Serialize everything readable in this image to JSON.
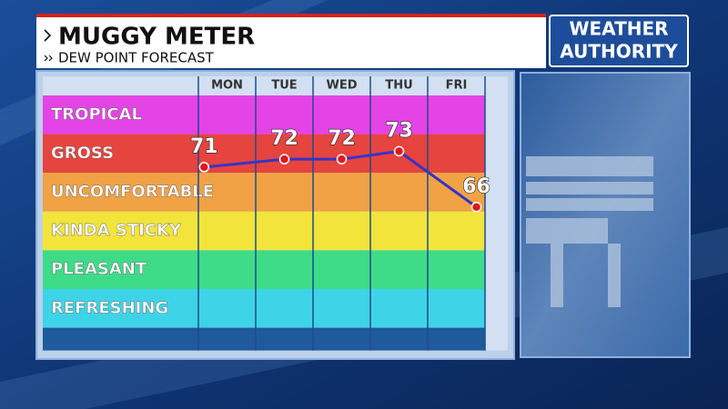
{
  "branding": {
    "logo": [
      "WEATHER",
      "AUTHORITY"
    ]
  },
  "chart_data": {
    "type": "line",
    "title": "MUGGY METER",
    "subtitle": "DEW POINT FORECAST",
    "categories": [
      "MON",
      "TUE",
      "WED",
      "THU",
      "FRI"
    ],
    "values": [
      71,
      72,
      72,
      73,
      66
    ],
    "ylim": [
      48,
      80
    ],
    "line_color": "#3434c8",
    "marker_color": "#e01818",
    "bands": [
      {
        "label": "TROPICAL",
        "color": "#e444e6"
      },
      {
        "label": "GROSS",
        "color": "#e6443e"
      },
      {
        "label": "UNCOMFORTABLE",
        "color": "#f0a244"
      },
      {
        "label": "KINDA STICKY",
        "color": "#f3e43c"
      },
      {
        "label": "PLEASANT",
        "color": "#3edc88"
      },
      {
        "label": "REFRESHING",
        "color": "#3ed4e8"
      }
    ]
  }
}
